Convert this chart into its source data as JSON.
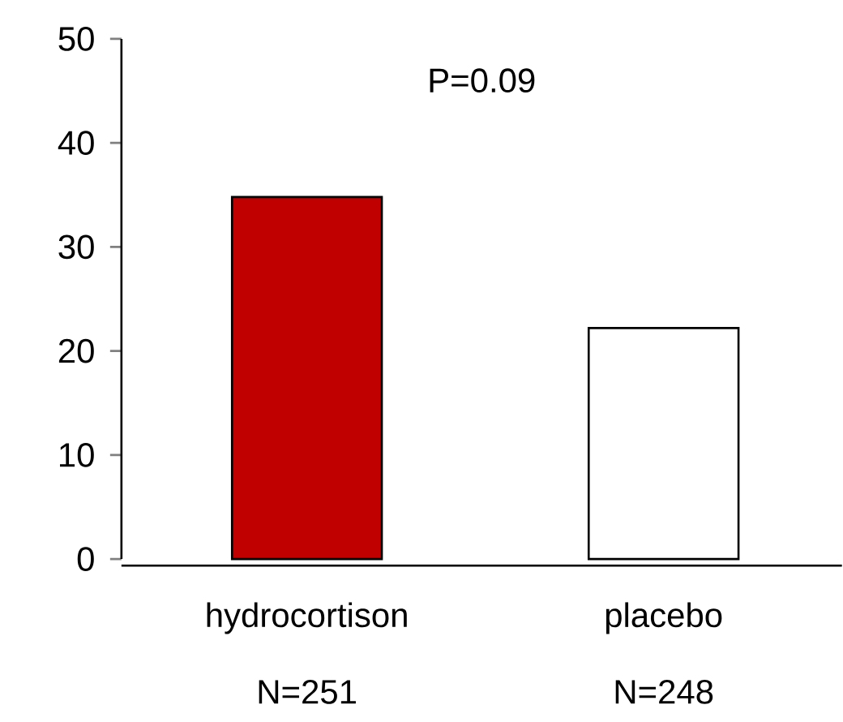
{
  "chart_data": {
    "type": "bar",
    "categories": [
      "hydrocortison",
      "placebo"
    ],
    "values": [
      34.8,
      22.2
    ],
    "colors": [
      "#c00000",
      "#ffffff"
    ],
    "ylim": [
      0,
      50
    ],
    "yticks": [
      0,
      10,
      20,
      30,
      40,
      50
    ],
    "grid": false,
    "annotations": [
      "P=0.09",
      "N=251",
      "N=248"
    ]
  }
}
